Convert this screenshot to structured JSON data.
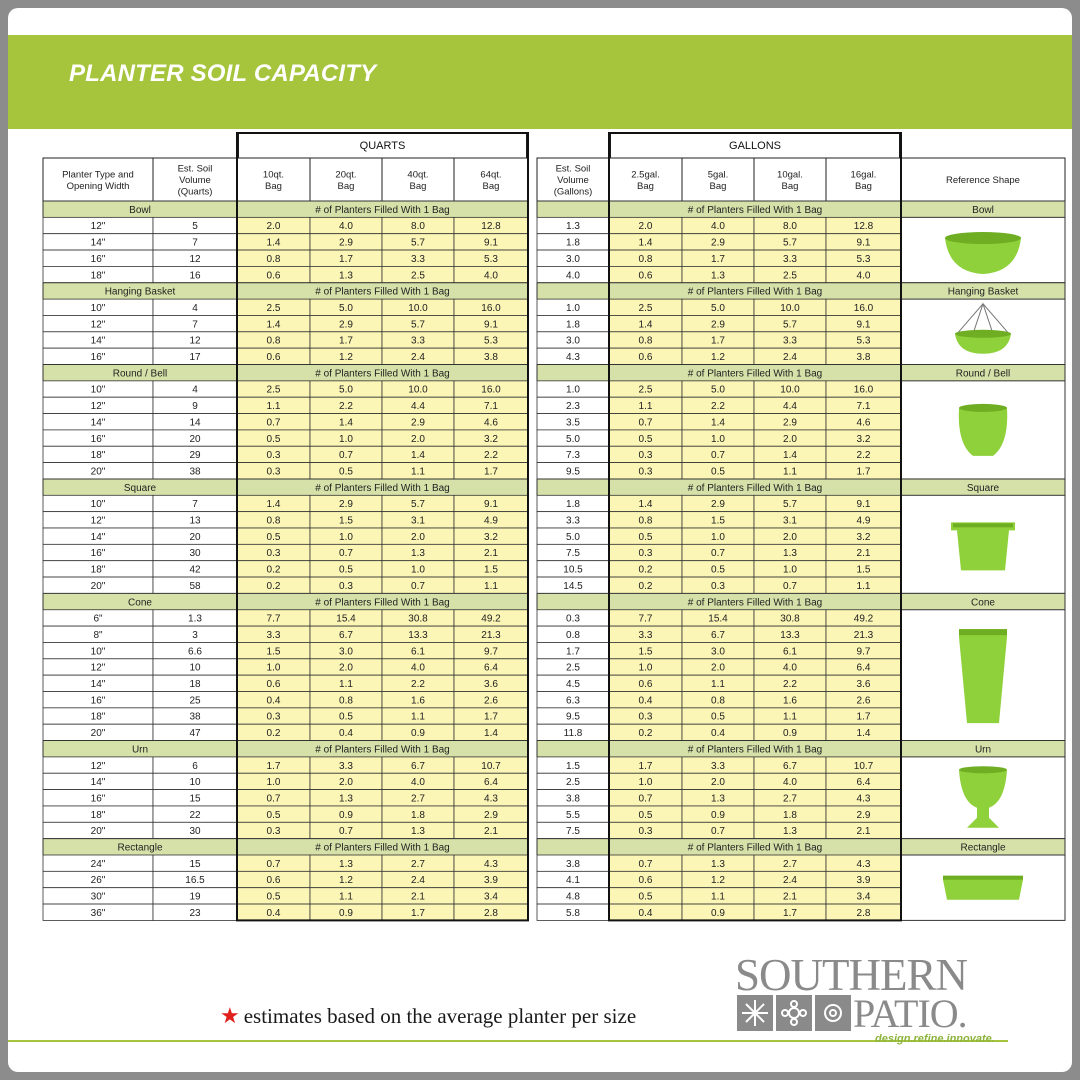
{
  "title": "PLANTER SOIL CAPACITY",
  "colors": {
    "accent": "#a6c43c",
    "cell_yellow": "#fbf5b6",
    "section_green": "#d5e1a8",
    "planter_green": "#8fd13a"
  },
  "headers": {
    "quarts_group": "QUARTS",
    "gallons_group": "GALLONS",
    "planter_type": [
      "Planter Type and",
      "Opening Width"
    ],
    "soil_quarts": [
      "Est. Soil",
      "Volume",
      "(Quarts)"
    ],
    "quart_bags": [
      [
        "10qt.",
        "Bag"
      ],
      [
        "20qt.",
        "Bag"
      ],
      [
        "40qt.",
        "Bag"
      ],
      [
        "64qt.",
        "Bag"
      ]
    ],
    "soil_gallons": [
      "Est. Soil",
      "Volume",
      "(Gallons)"
    ],
    "gallon_bags": [
      [
        "2.5gal.",
        "Bag"
      ],
      [
        "5gal.",
        "Bag"
      ],
      [
        "10gal.",
        "Bag"
      ],
      [
        "16gal.",
        "Bag"
      ]
    ],
    "reference": "Reference Shape"
  },
  "filled_label": "# of Planters Filled With 1 Bag",
  "sections": [
    {
      "name": "Bowl",
      "shape_icon": "bowl-planter-icon",
      "rows": [
        [
          "12\"",
          "5",
          "2.0",
          "4.0",
          "8.0",
          "12.8",
          "1.3",
          "2.0",
          "4.0",
          "8.0",
          "12.8"
        ],
        [
          "14\"",
          "7",
          "1.4",
          "2.9",
          "5.7",
          "9.1",
          "1.8",
          "1.4",
          "2.9",
          "5.7",
          "9.1"
        ],
        [
          "16\"",
          "12",
          "0.8",
          "1.7",
          "3.3",
          "5.3",
          "3.0",
          "0.8",
          "1.7",
          "3.3",
          "5.3"
        ],
        [
          "18\"",
          "16",
          "0.6",
          "1.3",
          "2.5",
          "4.0",
          "4.0",
          "0.6",
          "1.3",
          "2.5",
          "4.0"
        ]
      ]
    },
    {
      "name": "Hanging Basket",
      "shape_icon": "hanging-basket-icon",
      "rows": [
        [
          "10\"",
          "4",
          "2.5",
          "5.0",
          "10.0",
          "16.0",
          "1.0",
          "2.5",
          "5.0",
          "10.0",
          "16.0"
        ],
        [
          "12\"",
          "7",
          "1.4",
          "2.9",
          "5.7",
          "9.1",
          "1.8",
          "1.4",
          "2.9",
          "5.7",
          "9.1"
        ],
        [
          "14\"",
          "12",
          "0.8",
          "1.7",
          "3.3",
          "5.3",
          "3.0",
          "0.8",
          "1.7",
          "3.3",
          "5.3"
        ],
        [
          "16\"",
          "17",
          "0.6",
          "1.2",
          "2.4",
          "3.8",
          "4.3",
          "0.6",
          "1.2",
          "2.4",
          "3.8"
        ]
      ]
    },
    {
      "name": "Round / Bell",
      "shape_icon": "round-bell-planter-icon",
      "rows": [
        [
          "10\"",
          "4",
          "2.5",
          "5.0",
          "10.0",
          "16.0",
          "1.0",
          "2.5",
          "5.0",
          "10.0",
          "16.0"
        ],
        [
          "12\"",
          "9",
          "1.1",
          "2.2",
          "4.4",
          "7.1",
          "2.3",
          "1.1",
          "2.2",
          "4.4",
          "7.1"
        ],
        [
          "14\"",
          "14",
          "0.7",
          "1.4",
          "2.9",
          "4.6",
          "3.5",
          "0.7",
          "1.4",
          "2.9",
          "4.6"
        ],
        [
          "16\"",
          "20",
          "0.5",
          "1.0",
          "2.0",
          "3.2",
          "5.0",
          "0.5",
          "1.0",
          "2.0",
          "3.2"
        ],
        [
          "18\"",
          "29",
          "0.3",
          "0.7",
          "1.4",
          "2.2",
          "7.3",
          "0.3",
          "0.7",
          "1.4",
          "2.2"
        ],
        [
          "20\"",
          "38",
          "0.3",
          "0.5",
          "1.1",
          "1.7",
          "9.5",
          "0.3",
          "0.5",
          "1.1",
          "1.7"
        ]
      ]
    },
    {
      "name": "Square",
      "shape_icon": "square-planter-icon",
      "rows": [
        [
          "10\"",
          "7",
          "1.4",
          "2.9",
          "5.7",
          "9.1",
          "1.8",
          "1.4",
          "2.9",
          "5.7",
          "9.1"
        ],
        [
          "12\"",
          "13",
          "0.8",
          "1.5",
          "3.1",
          "4.9",
          "3.3",
          "0.8",
          "1.5",
          "3.1",
          "4.9"
        ],
        [
          "14\"",
          "20",
          "0.5",
          "1.0",
          "2.0",
          "3.2",
          "5.0",
          "0.5",
          "1.0",
          "2.0",
          "3.2"
        ],
        [
          "16\"",
          "30",
          "0.3",
          "0.7",
          "1.3",
          "2.1",
          "7.5",
          "0.3",
          "0.7",
          "1.3",
          "2.1"
        ],
        [
          "18\"",
          "42",
          "0.2",
          "0.5",
          "1.0",
          "1.5",
          "10.5",
          "0.2",
          "0.5",
          "1.0",
          "1.5"
        ],
        [
          "20\"",
          "58",
          "0.2",
          "0.3",
          "0.7",
          "1.1",
          "14.5",
          "0.2",
          "0.3",
          "0.7",
          "1.1"
        ]
      ]
    },
    {
      "name": "Cone",
      "shape_icon": "cone-planter-icon",
      "rows": [
        [
          "6\"",
          "1.3",
          "7.7",
          "15.4",
          "30.8",
          "49.2",
          "0.3",
          "7.7",
          "15.4",
          "30.8",
          "49.2"
        ],
        [
          "8\"",
          "3",
          "3.3",
          "6.7",
          "13.3",
          "21.3",
          "0.8",
          "3.3",
          "6.7",
          "13.3",
          "21.3"
        ],
        [
          "10\"",
          "6.6",
          "1.5",
          "3.0",
          "6.1",
          "9.7",
          "1.7",
          "1.5",
          "3.0",
          "6.1",
          "9.7"
        ],
        [
          "12\"",
          "10",
          "1.0",
          "2.0",
          "4.0",
          "6.4",
          "2.5",
          "1.0",
          "2.0",
          "4.0",
          "6.4"
        ],
        [
          "14\"",
          "18",
          "0.6",
          "1.1",
          "2.2",
          "3.6",
          "4.5",
          "0.6",
          "1.1",
          "2.2",
          "3.6"
        ],
        [
          "16\"",
          "25",
          "0.4",
          "0.8",
          "1.6",
          "2.6",
          "6.3",
          "0.4",
          "0.8",
          "1.6",
          "2.6"
        ],
        [
          "18\"",
          "38",
          "0.3",
          "0.5",
          "1.1",
          "1.7",
          "9.5",
          "0.3",
          "0.5",
          "1.1",
          "1.7"
        ],
        [
          "20\"",
          "47",
          "0.2",
          "0.4",
          "0.9",
          "1.4",
          "11.8",
          "0.2",
          "0.4",
          "0.9",
          "1.4"
        ]
      ]
    },
    {
      "name": "Urn",
      "shape_icon": "urn-planter-icon",
      "rows": [
        [
          "12\"",
          "6",
          "1.7",
          "3.3",
          "6.7",
          "10.7",
          "1.5",
          "1.7",
          "3.3",
          "6.7",
          "10.7"
        ],
        [
          "14\"",
          "10",
          "1.0",
          "2.0",
          "4.0",
          "6.4",
          "2.5",
          "1.0",
          "2.0",
          "4.0",
          "6.4"
        ],
        [
          "16\"",
          "15",
          "0.7",
          "1.3",
          "2.7",
          "4.3",
          "3.8",
          "0.7",
          "1.3",
          "2.7",
          "4.3"
        ],
        [
          "18\"",
          "22",
          "0.5",
          "0.9",
          "1.8",
          "2.9",
          "5.5",
          "0.5",
          "0.9",
          "1.8",
          "2.9"
        ],
        [
          "20\"",
          "30",
          "0.3",
          "0.7",
          "1.3",
          "2.1",
          "7.5",
          "0.3",
          "0.7",
          "1.3",
          "2.1"
        ]
      ]
    },
    {
      "name": "Rectangle",
      "shape_icon": "rectangle-planter-icon",
      "rows": [
        [
          "24\"",
          "15",
          "0.7",
          "1.3",
          "2.7",
          "4.3",
          "3.8",
          "0.7",
          "1.3",
          "2.7",
          "4.3"
        ],
        [
          "26\"",
          "16.5",
          "0.6",
          "1.2",
          "2.4",
          "3.9",
          "4.1",
          "0.6",
          "1.2",
          "2.4",
          "3.9"
        ],
        [
          "30\"",
          "19",
          "0.5",
          "1.1",
          "2.1",
          "3.4",
          "4.8",
          "0.5",
          "1.1",
          "2.1",
          "3.4"
        ],
        [
          "36\"",
          "23",
          "0.4",
          "0.9",
          "1.7",
          "2.8",
          "5.8",
          "0.4",
          "0.9",
          "1.7",
          "2.8"
        ]
      ]
    }
  ],
  "footnote": "estimates based on the average planter per size",
  "logo": {
    "line1": "SOUTHERN",
    "line2": "PATIO.",
    "tagline": "design.refine.innovate."
  }
}
